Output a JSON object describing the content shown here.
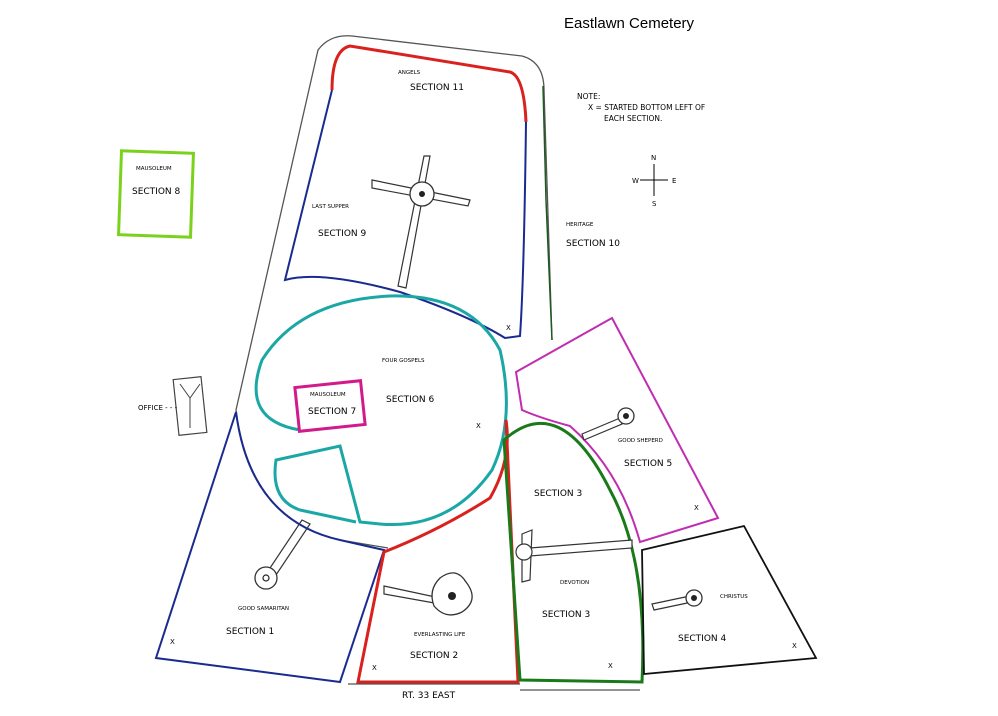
{
  "title": "Eastlawn Cemetery",
  "note": {
    "heading": "NOTE:",
    "line1": "X = STARTED BOTTOM LEFT OF",
    "line2": "EACH SECTION."
  },
  "compass": {
    "n": "N",
    "s": "S",
    "e": "E",
    "w": "W"
  },
  "office_label": "OFFICE - - -",
  "road_label": "RT. 33  EAST",
  "start_marker": "X",
  "colors": {
    "section_11_top": "#d9211e",
    "section_9": "#1a2b8f",
    "section_10": "#1f5a1f",
    "section_8": "#7ad21c",
    "section_6": "#1aa7a5",
    "section_7": "#d11a8c",
    "section_5": "#c02db0",
    "section_3": "#1a7a1a",
    "section_2": "#d9211e",
    "section_1": "#1a2b8f",
    "section_4": "#111111"
  },
  "sections": {
    "s11": {
      "name": "SECTION 11",
      "feature": "ANGELS"
    },
    "s9": {
      "name": "SECTION 9",
      "feature": "LAST SUPPER"
    },
    "s10": {
      "name": "SECTION 10",
      "feature": "HERITAGE"
    },
    "s8": {
      "name": "SECTION 8",
      "feature": "MAUSOLEUM"
    },
    "s6": {
      "name": "SECTION 6",
      "feature": "FOUR GOSPELS"
    },
    "s7": {
      "name": "SECTION 7",
      "feature": "MAUSOLEUM"
    },
    "s5": {
      "name": "SECTION 5",
      "feature": "GOOD SHEPERD"
    },
    "s3a": {
      "name": "SECTION 3"
    },
    "s3b": {
      "name": "SECTION 3",
      "feature": "DEVOTION"
    },
    "s2": {
      "name": "SECTION 2",
      "feature": "EVERLASTING LIFE"
    },
    "s1": {
      "name": "SECTION 1",
      "feature": "GOOD SAMARITAN"
    },
    "s4": {
      "name": "SECTION 4",
      "feature": "CHRISTUS"
    }
  }
}
